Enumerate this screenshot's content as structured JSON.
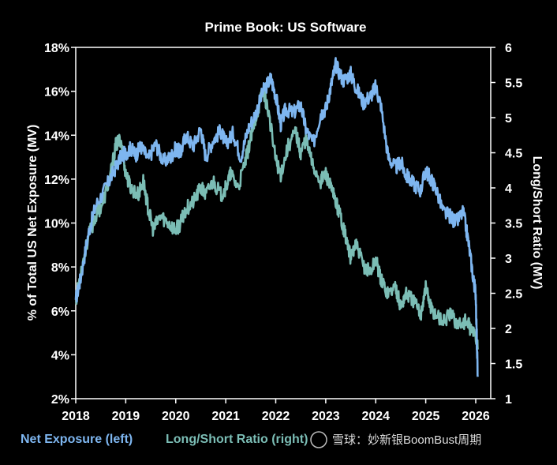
{
  "chart_data": {
    "type": "line",
    "title": "Prime Book: US Software",
    "ylabel": "% of Total US Net Exposure (MV)",
    "y2label": "Long/Short Ratio (MV)",
    "ylim": [
      2,
      18
    ],
    "y2lim": [
      1,
      6
    ],
    "xlim": [
      2018,
      2026.3
    ],
    "x_ticks": [
      "2018",
      "2019",
      "2020",
      "2021",
      "2022",
      "2023",
      "2024",
      "2025",
      "2026"
    ],
    "y_ticks": [
      "2%",
      "4%",
      "6%",
      "8%",
      "10%",
      "12%",
      "14%",
      "16%",
      "18%"
    ],
    "y2_ticks": [
      "1",
      "1.5",
      "2",
      "2.5",
      "3",
      "3.5",
      "4",
      "4.5",
      "5",
      "5.5",
      "6"
    ],
    "legend": [
      {
        "label": "Net Exposure (left)",
        "color": "#7EB6F0"
      },
      {
        "label": "Long/Short Ratio (right)",
        "color": "#7BBDB5"
      }
    ],
    "series": [
      {
        "name": "Net Exposure (left)",
        "axis": "left",
        "color": "#7EB6F0",
        "x": [
          2018.0,
          2018.1,
          2018.25,
          2018.4,
          2018.6,
          2018.75,
          2018.9,
          2019.0,
          2019.1,
          2019.2,
          2019.3,
          2019.45,
          2019.6,
          2019.75,
          2019.9,
          2020.0,
          2020.1,
          2020.2,
          2020.35,
          2020.5,
          2020.6,
          2020.75,
          2020.9,
          2021.0,
          2021.15,
          2021.3,
          2021.45,
          2021.6,
          2021.75,
          2021.9,
          2022.0,
          2022.1,
          2022.2,
          2022.35,
          2022.5,
          2022.6,
          2022.75,
          2022.9,
          2023.0,
          2023.1,
          2023.2,
          2023.35,
          2023.5,
          2023.6,
          2023.75,
          2023.9,
          2024.0,
          2024.1,
          2024.25,
          2024.4,
          2024.5,
          2024.6,
          2024.75,
          2024.9,
          2025.0,
          2025.1,
          2025.2,
          2025.35,
          2025.5,
          2025.6,
          2025.75,
          2025.85,
          2025.95,
          2026.0,
          2026.04
        ],
        "values": [
          6.5,
          7.5,
          9.5,
          10.8,
          11.6,
          12.3,
          13.0,
          13.2,
          13.4,
          13.1,
          13.5,
          12.9,
          13.6,
          12.8,
          13.0,
          13.4,
          13.2,
          14.0,
          13.5,
          14.3,
          13.0,
          13.8,
          14.2,
          13.6,
          14.1,
          13.0,
          14.3,
          15.0,
          16.0,
          16.6,
          15.8,
          14.5,
          15.2,
          15.0,
          15.4,
          14.3,
          13.6,
          15.0,
          15.2,
          16.2,
          17.2,
          16.5,
          16.8,
          16.2,
          15.5,
          15.8,
          16.2,
          15.4,
          13.0,
          12.5,
          12.8,
          12.2,
          11.8,
          11.5,
          12.4,
          12.0,
          11.6,
          10.5,
          10.3,
          10.0,
          10.5,
          9.2,
          7.5,
          6.8,
          3.0
        ]
      },
      {
        "name": "Long/Short Ratio (right)",
        "axis": "right",
        "color": "#7BBDB5",
        "x": [
          2018.0,
          2018.1,
          2018.25,
          2018.4,
          2018.55,
          2018.7,
          2018.8,
          2018.9,
          2019.0,
          2019.1,
          2019.25,
          2019.35,
          2019.45,
          2019.55,
          2019.7,
          2019.85,
          2020.0,
          2020.1,
          2020.2,
          2020.35,
          2020.5,
          2020.6,
          2020.75,
          2020.9,
          2021.0,
          2021.1,
          2021.25,
          2021.4,
          2021.5,
          2021.6,
          2021.75,
          2021.85,
          2022.0,
          2022.1,
          2022.25,
          2022.4,
          2022.5,
          2022.6,
          2022.75,
          2022.9,
          2023.0,
          2023.1,
          2023.2,
          2023.3,
          2023.4,
          2023.5,
          2023.6,
          2023.75,
          2023.9,
          2024.0,
          2024.1,
          2024.25,
          2024.4,
          2024.5,
          2024.6,
          2024.75,
          2024.9,
          2025.0,
          2025.1,
          2025.2,
          2025.35,
          2025.5,
          2025.65,
          2025.8,
          2025.9,
          2026.0,
          2026.04
        ],
        "values": [
          2.4,
          2.8,
          3.3,
          3.6,
          3.8,
          4.2,
          4.6,
          4.7,
          4.2,
          4.0,
          3.9,
          4.1,
          3.7,
          3.4,
          3.6,
          3.5,
          3.4,
          3.5,
          3.7,
          3.8,
          4.0,
          3.9,
          4.1,
          3.9,
          4.0,
          4.2,
          4.0,
          4.4,
          4.7,
          5.0,
          5.4,
          5.1,
          4.4,
          4.2,
          4.6,
          4.8,
          4.5,
          4.7,
          4.3,
          4.1,
          4.2,
          4.0,
          3.8,
          3.6,
          3.3,
          3.0,
          3.2,
          2.9,
          2.8,
          3.0,
          2.7,
          2.5,
          2.6,
          2.3,
          2.5,
          2.4,
          2.2,
          2.6,
          2.3,
          2.2,
          2.1,
          2.2,
          2.05,
          2.1,
          2.0,
          1.9,
          1.7
        ]
      }
    ]
  },
  "watermark": "雪球：妙新银BoomBust周期"
}
